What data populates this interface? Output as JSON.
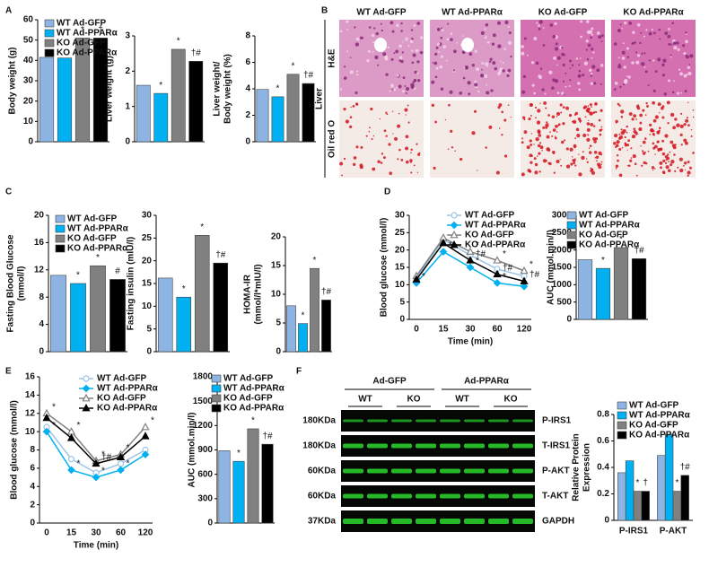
{
  "chart_data": [
    {
      "type": "bar",
      "panel": "A",
      "ylabel": "Body weight (g)",
      "ylim": [
        0,
        60
      ],
      "yticks": [
        0,
        10,
        20,
        30,
        40,
        50,
        60
      ],
      "values": [
        41.5,
        41.2,
        51,
        51
      ],
      "colors": [
        "#8db4e2",
        "#00b0f0",
        "#808080",
        "#000000"
      ],
      "annotations": [
        null,
        null,
        "*",
        "†"
      ],
      "legend": [
        "WT Ad-GFP",
        "WT Ad-PPARα",
        "KO Ad-GFP",
        "KO Ad-PPARα"
      ]
    },
    {
      "type": "bar",
      "ylabel": "Liver weight (g)",
      "ylim": [
        0,
        3
      ],
      "yticks": [
        0,
        1,
        2,
        3
      ],
      "values": [
        1.6,
        1.37,
        2.62,
        2.28
      ],
      "colors": [
        "#8db4e2",
        "#00b0f0",
        "#808080",
        "#000000"
      ],
      "annotations": [
        null,
        "*",
        "*",
        "†#"
      ]
    },
    {
      "type": "bar",
      "ylabel": [
        "Liver weight/",
        "Body weight (%)"
      ],
      "ylim": [
        0,
        8
      ],
      "yticks": [
        0,
        2,
        4,
        6,
        8
      ],
      "values": [
        3.95,
        3.4,
        5.1,
        4.4
      ],
      "colors": [
        "#8db4e2",
        "#00b0f0",
        "#808080",
        "#000000"
      ],
      "annotations": [
        null,
        "*",
        "*",
        "†#"
      ]
    },
    {
      "type": "image-grid",
      "panel": "B",
      "group": "Liver",
      "columns": [
        "WT Ad-GFP",
        "WT Ad-PPARα",
        "KO Ad-GFP",
        "KO Ad-PPARα"
      ],
      "rows": [
        "H&E",
        "Oil red O"
      ]
    },
    {
      "type": "bar",
      "panel": "C",
      "ylabel": [
        "Fasting Blood Glucose",
        "(mmol/l)"
      ],
      "ylim": [
        0,
        20
      ],
      "yticks": [
        0,
        4,
        8,
        12,
        16,
        20
      ],
      "values": [
        11.2,
        10,
        12.6,
        10.6
      ],
      "colors": [
        "#8db4e2",
        "#00b0f0",
        "#808080",
        "#000000"
      ],
      "annotations": [
        null,
        "*",
        "*",
        "#"
      ],
      "legend": [
        "WT Ad-GFP",
        "WT Ad-PPARα",
        "KO Ad-GFP",
        "KO Ad-PPARα"
      ]
    },
    {
      "type": "bar",
      "ylabel": "Fasting insulin (mIU/l)",
      "ylim": [
        0,
        30
      ],
      "yticks": [
        0,
        5,
        10,
        15,
        20,
        25,
        30
      ],
      "values": [
        16.2,
        12,
        25.6,
        19.5
      ],
      "colors": [
        "#8db4e2",
        "#00b0f0",
        "#808080",
        "#000000"
      ],
      "annotations": [
        null,
        "*",
        "*",
        "†#"
      ]
    },
    {
      "type": "bar",
      "ylabel": [
        "HOMA-IR",
        "(mmol/l*mIU/l)"
      ],
      "ylim": [
        0,
        20
      ],
      "yticks": [
        0,
        5,
        10,
        15,
        20
      ],
      "values": [
        8,
        4.9,
        14.5,
        9
      ],
      "colors": [
        "#8db4e2",
        "#00b0f0",
        "#808080",
        "#000000"
      ],
      "annotations": [
        null,
        "*",
        "*",
        "†#"
      ]
    },
    {
      "type": "line",
      "panel": "D",
      "ylabel": "Blood glucose (mmol/l)",
      "xlabel": "Time (min)",
      "categories": [
        "0",
        "15",
        "30",
        "60",
        "120"
      ],
      "ylim": [
        0,
        30
      ],
      "yticks": [
        0,
        5,
        10,
        15,
        20,
        25,
        30
      ],
      "series": [
        {
          "name": "WT Ad-GFP",
          "color": "#9dc3e6",
          "marker": "circle-open",
          "values": [
            12,
            23,
            18.5,
            14.5,
            12.5
          ]
        },
        {
          "name": "WT Ad-PPARα",
          "color": "#00b0f0",
          "marker": "diamond",
          "values": [
            10.5,
            19.5,
            15,
            10.5,
            9.5
          ],
          "annotations": [
            "*",
            "*",
            "*",
            "*",
            null
          ]
        },
        {
          "name": "KO Ad-GFP",
          "color": "#808080",
          "marker": "triangle-open",
          "values": [
            12.5,
            23.5,
            19.5,
            17,
            14
          ],
          "annotations": [
            null,
            null,
            "*",
            "*",
            "*"
          ]
        },
        {
          "name": "KO Ad-PPARα",
          "color": "#000000",
          "marker": "triangle",
          "values": [
            11.5,
            22,
            17,
            13,
            11
          ],
          "annotations": [
            null,
            null,
            "†#",
            "†#",
            "†#"
          ]
        }
      ]
    },
    {
      "type": "bar",
      "ylabel": "AUC (mmol.min/l)",
      "ylim": [
        0,
        3000
      ],
      "yticks": [
        0,
        500,
        1000,
        1500,
        2000,
        2500,
        3000
      ],
      "values": [
        1720,
        1470,
        2070,
        1750
      ],
      "colors": [
        "#8db4e2",
        "#00b0f0",
        "#808080",
        "#000000"
      ],
      "annotations": [
        null,
        "*",
        "*",
        "†#"
      ],
      "legend": [
        "WT Ad-GFP",
        "WT Ad-PPARα",
        "KO Ad-GFP",
        "KO Ad-PPARα"
      ]
    },
    {
      "type": "line",
      "panel": "E",
      "ylabel": "Blood glucose (mmol/l)",
      "xlabel": "Time (min)",
      "categories": [
        "0",
        "15",
        "30",
        "60",
        "120"
      ],
      "ylim": [
        0,
        16
      ],
      "yticks": [
        0,
        2,
        4,
        6,
        8,
        10,
        12,
        14,
        16
      ],
      "series": [
        {
          "name": "WT Ad-GFP",
          "color": "#9dc3e6",
          "marker": "circle-open",
          "values": [
            10.5,
            7,
            5.5,
            6.5,
            8
          ]
        },
        {
          "name": "WT Ad-PPARα",
          "color": "#00b0f0",
          "marker": "diamond",
          "values": [
            10,
            5.8,
            5,
            5.8,
            7.5
          ],
          "annotations": [
            "*",
            "*",
            "*",
            "*",
            null
          ]
        },
        {
          "name": "KO Ad-GFP",
          "color": "#808080",
          "marker": "triangle-open",
          "values": [
            12,
            10,
            6.8,
            7.5,
            10.5
          ],
          "annotations": [
            "*",
            "*",
            "*",
            "*",
            "*"
          ]
        },
        {
          "name": "KO Ad-PPARα",
          "color": "#000000",
          "marker": "triangle",
          "values": [
            11.5,
            9.3,
            6.5,
            7.2,
            9.5
          ],
          "annotations": [
            null,
            null,
            "†#",
            null,
            null
          ]
        }
      ]
    },
    {
      "type": "bar",
      "ylabel": "AUC (mmol.min/l)",
      "ylim": [
        0,
        1800
      ],
      "yticks": [
        0,
        300,
        600,
        900,
        1200,
        1500,
        1800
      ],
      "values": [
        890,
        760,
        1160,
        970
      ],
      "colors": [
        "#8db4e2",
        "#00b0f0",
        "#808080",
        "#000000"
      ],
      "annotations": [
        null,
        "*",
        "*",
        "†#"
      ],
      "legend": [
        "WT Ad-GFP",
        "WT Ad-PPARα",
        "KO Ad-GFP",
        "KO Ad-PPARα"
      ]
    },
    {
      "type": "blot",
      "panel": "F",
      "groups": [
        "Ad-GFP",
        "Ad-PPARα"
      ],
      "lanes": [
        "WT",
        "KO",
        "WT",
        "KO"
      ],
      "rows": [
        {
          "size": "180KDa",
          "name": "P-IRS1"
        },
        {
          "size": "180KDa",
          "name": "T-IRS1"
        },
        {
          "size": "60KDa",
          "name": "P-AKT"
        },
        {
          "size": "60KDa",
          "name": "T-AKT"
        },
        {
          "size": "37KDa",
          "name": "GAPDH"
        }
      ]
    },
    {
      "type": "bar",
      "ylabel": [
        "Relative Protein",
        "Expression"
      ],
      "ylim": [
        0,
        0.8
      ],
      "yticks": [
        0,
        0.2,
        0.4,
        0.6,
        0.8
      ],
      "categories": [
        "P-IRS1",
        "P-AKT"
      ],
      "series": [
        {
          "name": "WT Ad-GFP",
          "color": "#8db4e2",
          "values": [
            0.36,
            0.49
          ],
          "annotations": [
            null,
            null
          ]
        },
        {
          "name": "WT Ad-PPARα",
          "color": "#00b0f0",
          "values": [
            0.45,
            0.65
          ],
          "annotations": [
            null,
            "*"
          ]
        },
        {
          "name": "KO Ad-GFP",
          "color": "#808080",
          "values": [
            0.22,
            0.22
          ],
          "annotations": [
            "*",
            "*"
          ]
        },
        {
          "name": "KO Ad-PPARα",
          "color": "#000000",
          "values": [
            0.22,
            0.34
          ],
          "annotations": [
            "†",
            "†#"
          ]
        }
      ]
    }
  ]
}
